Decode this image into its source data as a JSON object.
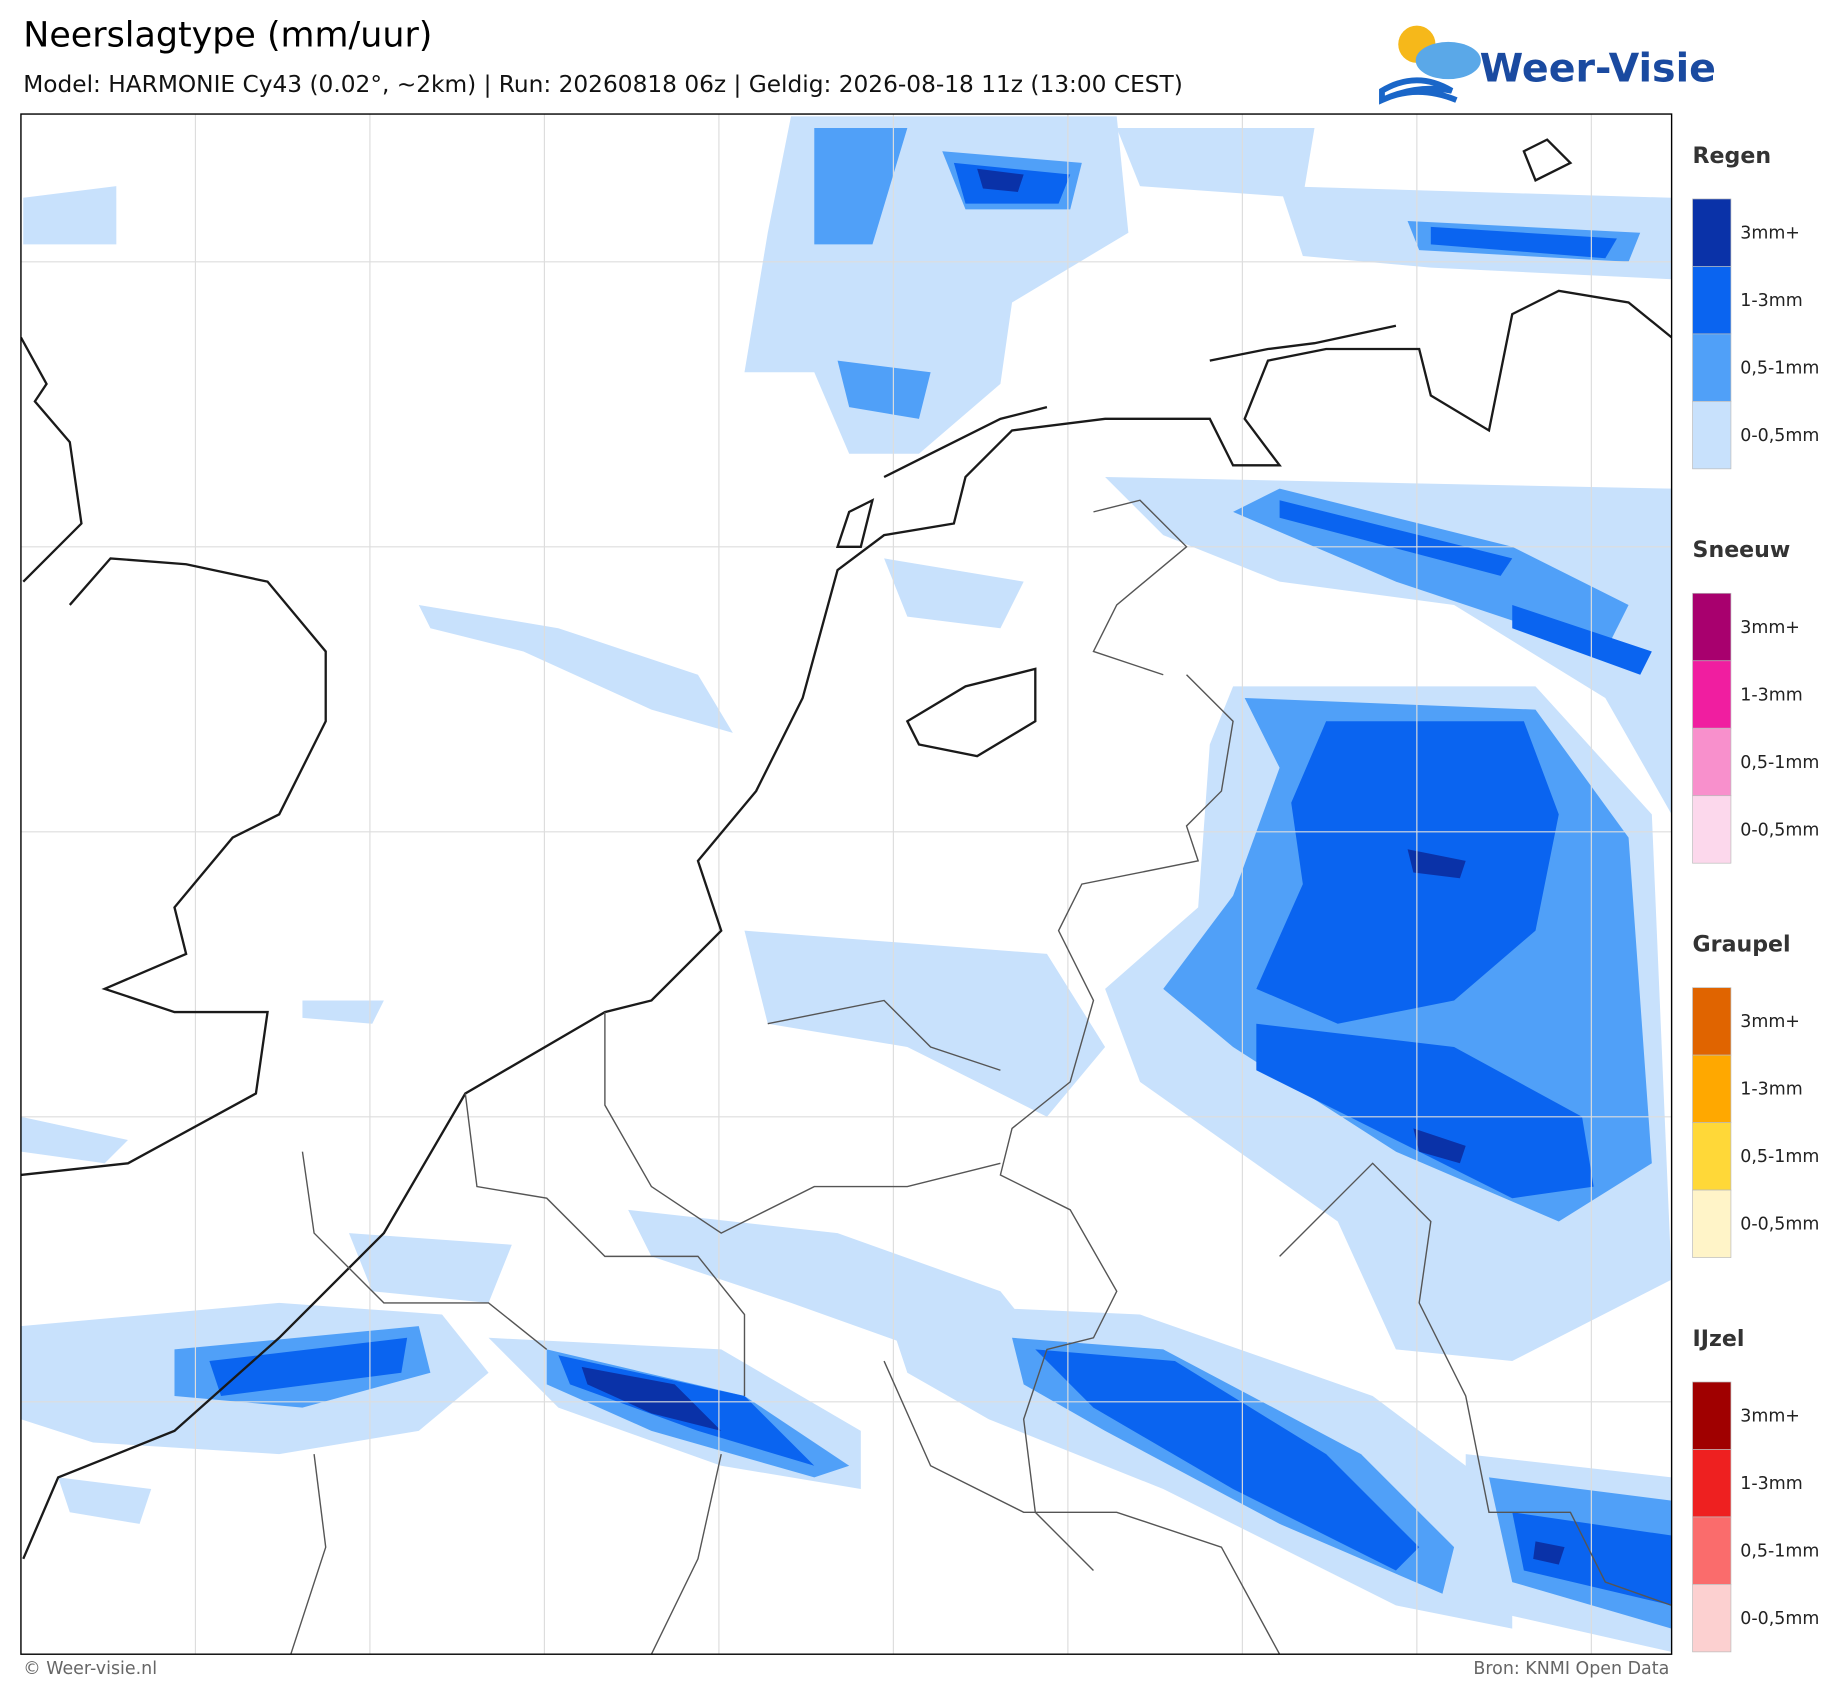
{
  "header": {
    "title": "Neerslagtype (mm/uur)",
    "subtitle": "Model: HARMONIE Cy43 (0.02°, ~2km)  |  Run: 20260818 06z  |  Geldig: 2026-08-18 11z (13:00 CEST)",
    "logo": "Weer-Visie"
  },
  "legend": [
    {
      "name": "Regen",
      "items": [
        {
          "label": "3mm+",
          "color": "#0a32a8"
        },
        {
          "label": "1-3mm",
          "color": "#0a64f0"
        },
        {
          "label": "0,5-1mm",
          "color": "#50a0f8"
        },
        {
          "label": "0-0,5mm",
          "color": "#c8e1fc"
        }
      ]
    },
    {
      "name": "Sneeuw",
      "items": [
        {
          "label": "3mm+",
          "color": "#a8006e"
        },
        {
          "label": "1-3mm",
          "color": "#f01ea0"
        },
        {
          "label": "0,5-1mm",
          "color": "#f890cc"
        },
        {
          "label": "0-0,5mm",
          "color": "#fcd8ec"
        }
      ]
    },
    {
      "name": "Graupel",
      "items": [
        {
          "label": "3mm+",
          "color": "#e06400"
        },
        {
          "label": "1-3mm",
          "color": "#ffa800"
        },
        {
          "label": "0,5-1mm",
          "color": "#ffd838"
        },
        {
          "label": "0-0,5mm",
          "color": "#fff4c8"
        }
      ]
    },
    {
      "name": "IJzel",
      "items": [
        {
          "label": "3mm+",
          "color": "#a00000"
        },
        {
          "label": "1-3mm",
          "color": "#ee2020"
        },
        {
          "label": "0,5-1mm",
          "color": "#fa6c6c"
        },
        {
          "label": "0-0,5mm",
          "color": "#fcd0d0"
        }
      ]
    }
  ],
  "footer": {
    "copyright": "© Weer-visie.nl",
    "source": "Bron: KNMI Open Data"
  }
}
